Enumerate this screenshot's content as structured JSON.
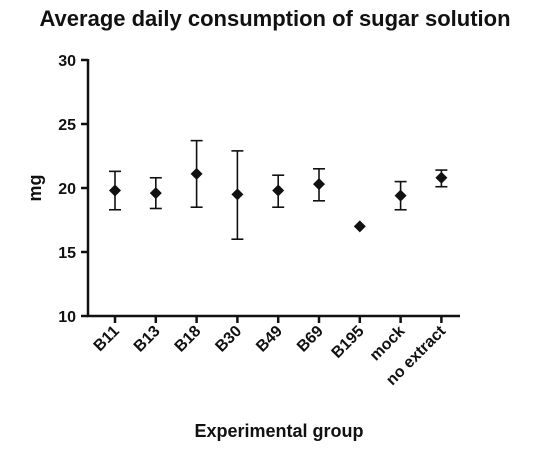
{
  "chart_data": {
    "type": "scatter",
    "title": "Average daily consumption of sugar solution",
    "xlabel": "Experimental group",
    "ylabel": "mg",
    "ylim": [
      10,
      30
    ],
    "yticks": [
      10,
      15,
      20,
      25,
      30
    ],
    "grid": false,
    "legend": "none",
    "marker": "diamond",
    "categories": [
      "B11",
      "B13",
      "B18",
      "B30",
      "B49",
      "B69",
      "B195",
      "mock",
      "no extract"
    ],
    "values": [
      19.8,
      19.6,
      21.1,
      19.5,
      19.8,
      20.3,
      17.0,
      19.4,
      20.8
    ],
    "error_low": [
      18.3,
      18.4,
      18.5,
      16.0,
      18.5,
      19.0,
      17.0,
      18.3,
      20.1
    ],
    "error_high": [
      21.3,
      20.8,
      23.7,
      22.9,
      21.0,
      21.5,
      17.0,
      20.5,
      21.4
    ]
  }
}
